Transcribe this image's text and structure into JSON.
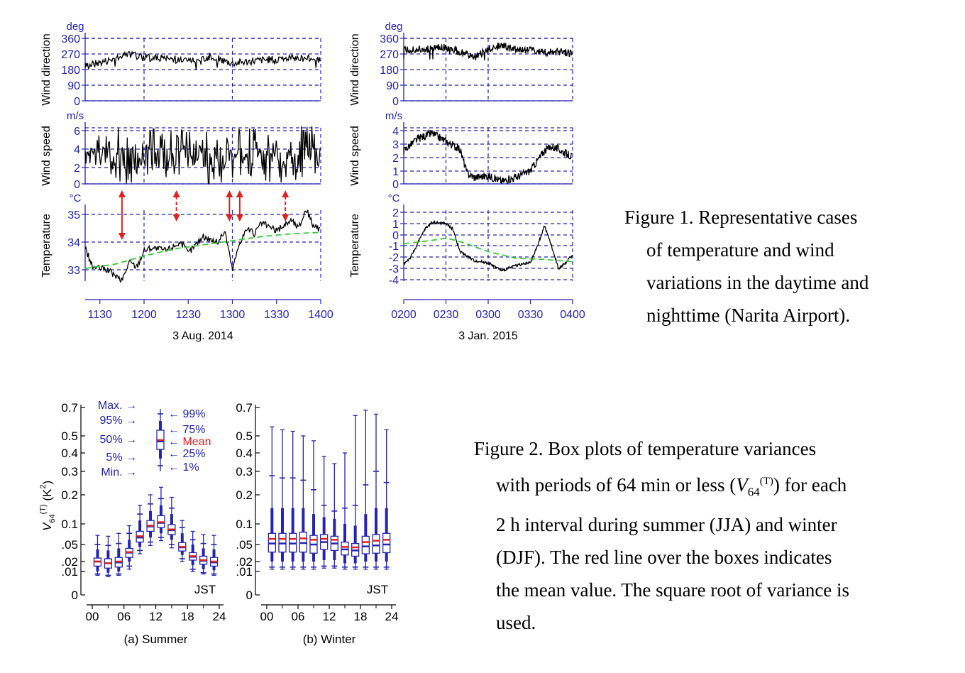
{
  "figure1": {
    "panels": [
      {
        "date": "3 Aug. 2014",
        "xticks": [
          "1130",
          "1200",
          "1230",
          "1300",
          "1330",
          "1400"
        ]
      },
      {
        "date": "3 Jan. 2015",
        "xticks": [
          "0200",
          "0230",
          "0300",
          "0330",
          "0400"
        ]
      }
    ],
    "rows": [
      {
        "ylabel": "Wind direction",
        "unit": "deg"
      },
      {
        "ylabel": "Wind speed",
        "unit": "m/s"
      },
      {
        "ylabel": "Temperature",
        "unit": "°C"
      }
    ],
    "caption": {
      "lead": "Figure 1. Representative cases",
      "lines": [
        "of temperature and wind",
        "variations in the daytime and",
        "nighttime (Narita Airport)."
      ]
    }
  },
  "chart_data": [
    {
      "type": "line",
      "title": "",
      "xlabel": "3 Aug. 2014",
      "ylabel": "Wind direction",
      "unit": "deg",
      "yticks": [
        "0",
        "90",
        "180",
        "270",
        "360"
      ],
      "ylim": [
        0,
        360
      ],
      "xlim": [
        1120,
        1400
      ],
      "series": [
        {
          "x": [
            1120,
            1135,
            1150,
            1200,
            1215,
            1230,
            1245,
            1300,
            1315,
            1330,
            1345,
            1400
          ],
          "y": [
            200,
            230,
            270,
            250,
            245,
            230,
            255,
            215,
            230,
            240,
            250,
            240
          ]
        }
      ]
    },
    {
      "type": "line",
      "title": "",
      "xlabel": "3 Aug. 2014",
      "ylabel": "Wind speed",
      "unit": "m/s",
      "yticks": [
        "0",
        "2",
        "4",
        "6"
      ],
      "ylim": [
        0,
        6.5
      ],
      "xlim": [
        1120,
        1400
      ],
      "series": [
        {
          "x": [
            1120,
            1135,
            1150,
            1200,
            1215,
            1230,
            1245,
            1300,
            1315,
            1330,
            1345,
            1400
          ],
          "y": [
            3.0,
            3.4,
            2.8,
            3.2,
            2.9,
            3.3,
            2.7,
            3.1,
            3.5,
            2.9,
            3.6,
            3.2
          ]
        }
      ]
    },
    {
      "type": "line",
      "title": "",
      "xlabel": "3 Aug. 2014",
      "ylabel": "Temperature",
      "unit": "°C",
      "yticks": [
        "33",
        "34",
        "35"
      ],
      "ylim": [
        32.5,
        35.3
      ],
      "xlim": [
        1120,
        1400
      ],
      "series": [
        {
          "x": [
            1120,
            1125,
            1135,
            1145,
            1150,
            1155,
            1200,
            1205,
            1215,
            1225,
            1230,
            1240,
            1250,
            1255,
            1300,
            1305,
            1310,
            1315,
            1320,
            1330,
            1340,
            1345,
            1350,
            1355,
            1400
          ],
          "y": [
            33.8,
            33.1,
            33.0,
            32.6,
            33.3,
            33.1,
            33.7,
            33.8,
            33.7,
            34.0,
            33.6,
            34.2,
            34.0,
            34.4,
            33.0,
            34.0,
            34.5,
            34.3,
            34.7,
            34.4,
            34.8,
            34.5,
            35.2,
            34.6,
            34.4
          ]
        },
        {
          "x": [
            1120,
            1140,
            1200,
            1220,
            1240,
            1300,
            1320,
            1340,
            1400
          ],
          "y": [
            33.05,
            33.2,
            33.5,
            33.75,
            33.9,
            34.05,
            34.2,
            34.3,
            34.35
          ],
          "color": "#33cc33"
        }
      ],
      "events": [
        1145,
        1222,
        1258,
        1305,
        1336
      ]
    },
    {
      "type": "line",
      "title": "",
      "xlabel": "3 Jan. 2015",
      "ylabel": "Wind direction",
      "unit": "deg",
      "yticks": [
        "0",
        "90",
        "180",
        "270",
        "360"
      ],
      "ylim": [
        0,
        360
      ],
      "xlim": [
        200,
        400
      ],
      "series": [
        {
          "x": [
            200,
            210,
            220,
            230,
            240,
            250,
            255,
            300,
            310,
            320,
            330,
            340,
            350,
            400
          ],
          "y": [
            290,
            295,
            300,
            310,
            280,
            250,
            270,
            300,
            320,
            290,
            290,
            280,
            280,
            275
          ]
        }
      ]
    },
    {
      "type": "line",
      "title": "",
      "xlabel": "3 Jan. 2015",
      "ylabel": "Wind speed",
      "unit": "m/s",
      "yticks": [
        "0",
        "1",
        "2",
        "3",
        "4"
      ],
      "ylim": [
        0,
        4.5
      ],
      "xlim": [
        200,
        400
      ],
      "series": [
        {
          "x": [
            200,
            210,
            220,
            230,
            240,
            245,
            250,
            300,
            310,
            320,
            330,
            340,
            345,
            350,
            400
          ],
          "y": [
            2.5,
            3.4,
            3.8,
            3.2,
            2.6,
            0.8,
            0.5,
            0.6,
            0.2,
            0.5,
            1.0,
            2.5,
            2.8,
            2.6,
            2.0
          ]
        }
      ]
    },
    {
      "type": "line",
      "title": "",
      "xlabel": "3 Jan. 2015",
      "ylabel": "Temperature",
      "unit": "°C",
      "yticks": [
        "2",
        "1",
        "0",
        "-1",
        "-2",
        "-3",
        "-4"
      ],
      "ylim": [
        -4.5,
        2.5
      ],
      "xlim": [
        200,
        400
      ],
      "series": [
        {
          "x": [
            200,
            205,
            215,
            220,
            230,
            235,
            240,
            250,
            300,
            310,
            320,
            330,
            335,
            340,
            345,
            350,
            355,
            400
          ],
          "y": [
            -2.6,
            -2.0,
            0.5,
            1.1,
            1.0,
            0.5,
            -1.5,
            -2.3,
            -2.5,
            -3.2,
            -2.7,
            -2.5,
            -1.0,
            0.8,
            -1.0,
            -3.0,
            -2.5,
            -1.8
          ]
        },
        {
          "x": [
            200,
            220,
            230,
            240,
            300,
            320,
            340,
            400
          ],
          "y": [
            -0.8,
            -0.5,
            -0.3,
            -0.6,
            -1.5,
            -2.1,
            -2.2,
            -2.4
          ],
          "color": "#33cc33"
        }
      ]
    },
    {
      "type": "box",
      "title": "",
      "xlabel": "(a) Summer",
      "ylabel": "V64(T) (K2)",
      "note": "JST",
      "x": [
        1,
        3,
        5,
        7,
        9,
        11,
        13,
        15,
        17,
        19,
        21,
        23
      ],
      "xticks": [
        "00",
        "06",
        "12",
        "18",
        "24"
      ],
      "yticks": [
        "0",
        ".01",
        ".02",
        ".05",
        "0.1",
        "0.2",
        "0.3",
        "0.4",
        "0.5",
        "0.7"
      ],
      "yscale": "sqrt",
      "mean": [
        0.02,
        0.018,
        0.02,
        0.035,
        0.068,
        0.095,
        0.105,
        0.085,
        0.045,
        0.028,
        0.022,
        0.02
      ],
      "median": [
        0.02,
        0.018,
        0.019,
        0.034,
        0.065,
        0.093,
        0.103,
        0.083,
        0.044,
        0.027,
        0.021,
        0.019
      ],
      "q1": [
        0.015,
        0.013,
        0.014,
        0.026,
        0.055,
        0.08,
        0.09,
        0.072,
        0.037,
        0.022,
        0.017,
        0.015
      ],
      "q3": [
        0.025,
        0.024,
        0.026,
        0.042,
        0.08,
        0.11,
        0.125,
        0.098,
        0.054,
        0.034,
        0.028,
        0.026
      ],
      "p5": [
        0.01,
        0.009,
        0.01,
        0.02,
        0.045,
        0.065,
        0.075,
        0.06,
        0.03,
        0.016,
        0.012,
        0.011
      ],
      "p95": [
        0.04,
        0.038,
        0.042,
        0.06,
        0.11,
        0.14,
        0.16,
        0.13,
        0.075,
        0.05,
        0.042,
        0.04
      ],
      "p1": [
        0.008,
        0.007,
        0.008,
        0.015,
        0.038,
        0.055,
        0.065,
        0.05,
        0.024,
        0.012,
        0.009,
        0.008
      ],
      "p99": [
        0.05,
        0.048,
        0.052,
        0.075,
        0.13,
        0.165,
        0.185,
        0.15,
        0.09,
        0.06,
        0.052,
        0.05
      ],
      "min": [
        0.007,
        0.006,
        0.007,
        0.012,
        0.032,
        0.048,
        0.058,
        0.043,
        0.02,
        0.01,
        0.008,
        0.007
      ],
      "max": [
        0.07,
        0.068,
        0.075,
        0.095,
        0.16,
        0.2,
        0.23,
        0.19,
        0.11,
        0.08,
        0.072,
        0.07
      ],
      "legend": {
        "Max": "Max.",
        "p95": "95%",
        "median": "50%",
        "p5": "5%",
        "Min": "Min.",
        "p99": "99%",
        "q3": "75%",
        "mean": "Mean",
        "q1": "25%",
        "p1": "1%"
      }
    },
    {
      "type": "box",
      "title": "",
      "xlabel": "(b) Winter",
      "ylabel": "",
      "note": "JST",
      "x": [
        1,
        3,
        5,
        7,
        9,
        11,
        13,
        15,
        17,
        19,
        21,
        23
      ],
      "xticks": [
        "00",
        "06",
        "12",
        "18",
        "24"
      ],
      "yticks": [
        "0",
        ".01",
        ".02",
        ".05",
        "0.1",
        "0.2",
        "0.3",
        "0.4",
        "0.5",
        "0.7"
      ],
      "yscale": "sqrt",
      "mean": [
        0.062,
        0.062,
        0.062,
        0.063,
        0.06,
        0.062,
        0.06,
        0.045,
        0.044,
        0.055,
        0.058,
        0.06
      ],
      "median": [
        0.052,
        0.052,
        0.052,
        0.053,
        0.05,
        0.055,
        0.052,
        0.04,
        0.038,
        0.046,
        0.048,
        0.05
      ],
      "q1": [
        0.035,
        0.035,
        0.035,
        0.035,
        0.033,
        0.04,
        0.038,
        0.03,
        0.028,
        0.032,
        0.033,
        0.034
      ],
      "q3": [
        0.075,
        0.075,
        0.075,
        0.078,
        0.07,
        0.072,
        0.068,
        0.055,
        0.052,
        0.068,
        0.072,
        0.075
      ],
      "p5": [
        0.02,
        0.02,
        0.02,
        0.02,
        0.02,
        0.022,
        0.022,
        0.018,
        0.018,
        0.02,
        0.02,
        0.02
      ],
      "p95": [
        0.15,
        0.15,
        0.15,
        0.15,
        0.13,
        0.12,
        0.115,
        0.1,
        0.095,
        0.13,
        0.15,
        0.15
      ],
      "p1": [
        0.014,
        0.014,
        0.014,
        0.014,
        0.014,
        0.015,
        0.015,
        0.014,
        0.014,
        0.014,
        0.014,
        0.014
      ],
      "p99": [
        0.28,
        0.27,
        0.27,
        0.26,
        0.22,
        0.16,
        0.14,
        0.15,
        0.16,
        0.24,
        0.3,
        0.25
      ],
      "min": [
        0.012,
        0.012,
        0.012,
        0.012,
        0.012,
        0.013,
        0.013,
        0.012,
        0.012,
        0.012,
        0.012,
        0.012
      ],
      "max": [
        0.56,
        0.54,
        0.53,
        0.5,
        0.47,
        0.38,
        0.34,
        0.4,
        0.64,
        0.68,
        0.65,
        0.54
      ]
    }
  ],
  "figure2": {
    "panels": [
      {
        "label": "(a) Summer",
        "note": "JST",
        "ylabel": "(K",
        "ylabel_var": "V",
        "ylabel_sub": "64",
        "ylabel_sup": "(T)",
        "ylabel_sup2": "2",
        "ylabel_end": ")"
      },
      {
        "label": "(b) Winter",
        "note": "JST"
      }
    ],
    "caption": {
      "lead": "Figure 2. Box plots of temperature variances",
      "line2_pre": "with periods of 64 min or less (",
      "line2_var": "V",
      "line2_sub": "64",
      "line2_sup": "(T)",
      "line2_post": ") for each",
      "lines": [
        "2 h interval during summer (JJA) and winter",
        "(DJF). The red line over the boxes indicates",
        "the mean value. The square root of variance is",
        "used."
      ]
    }
  }
}
